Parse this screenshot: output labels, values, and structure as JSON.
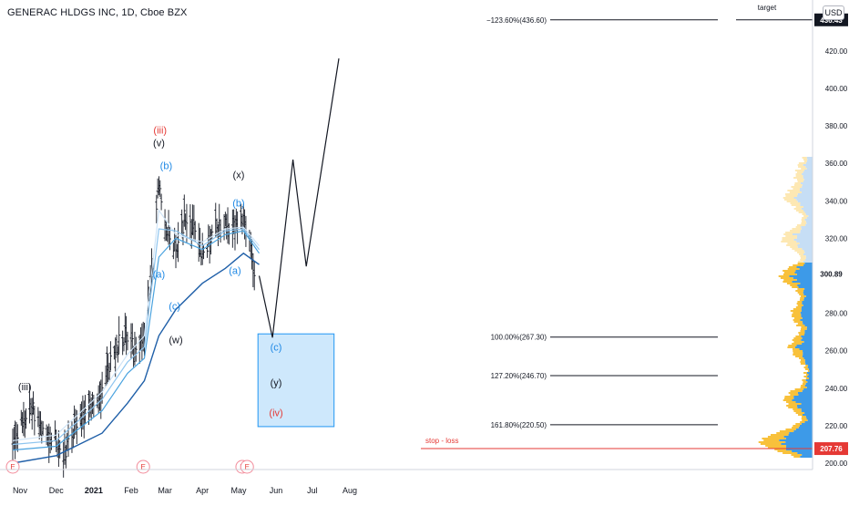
{
  "header": {
    "title": "GENERAC HLDGS INC, 1D, Cboe BZX",
    "currency": "USD"
  },
  "chart_data": {
    "type": "line",
    "title": "GENERAC HLDGS INC, 1D, Cboe BZX",
    "x_ticks": [
      "Nov",
      "Dec",
      "2021",
      "Feb",
      "Mar",
      "Apr",
      "May",
      "Jun",
      "Jul",
      "Aug"
    ],
    "y_ticks": [
      200.0,
      220.0,
      240.0,
      260.0,
      280.0,
      300.0,
      320.0,
      340.0,
      360.0,
      380.0,
      400.0,
      420.0
    ],
    "ylim": [
      195,
      440
    ],
    "price_labels": {
      "last": "300.89",
      "stop": "207.76",
      "target": "436.43"
    },
    "price_series": [
      {
        "d": "2020-10-26",
        "v": 208
      },
      {
        "d": "2020-11-05",
        "v": 225
      },
      {
        "d": "2020-11-10",
        "v": 230
      },
      {
        "d": "2020-11-20",
        "v": 218
      },
      {
        "d": "2020-12-01",
        "v": 212
      },
      {
        "d": "2020-12-08",
        "v": 205
      },
      {
        "d": "2020-12-18",
        "v": 222
      },
      {
        "d": "2020-12-30",
        "v": 228
      },
      {
        "d": "2021-01-08",
        "v": 240
      },
      {
        "d": "2021-01-20",
        "v": 262
      },
      {
        "d": "2021-01-29",
        "v": 270
      },
      {
        "d": "2021-02-04",
        "v": 258
      },
      {
        "d": "2021-02-12",
        "v": 268
      },
      {
        "d": "2021-02-18",
        "v": 300
      },
      {
        "d": "2021-02-24",
        "v": 350
      },
      {
        "d": "2021-03-01",
        "v": 330
      },
      {
        "d": "2021-03-05",
        "v": 322
      },
      {
        "d": "2021-03-10",
        "v": 315
      },
      {
        "d": "2021-03-17",
        "v": 330
      },
      {
        "d": "2021-03-25",
        "v": 325
      },
      {
        "d": "2021-04-01",
        "v": 310
      },
      {
        "d": "2021-04-09",
        "v": 325
      },
      {
        "d": "2021-04-20",
        "v": 328
      },
      {
        "d": "2021-04-28",
        "v": 325
      },
      {
        "d": "2021-05-05",
        "v": 330
      },
      {
        "d": "2021-05-10",
        "v": 320
      },
      {
        "d": "2021-05-14",
        "v": 300
      }
    ],
    "moving_averages": [
      {
        "name": "",
        "color": "#cfe4f7",
        "points": [
          {
            "d": "2020-10-26",
            "v": 212
          },
          {
            "d": "2020-12-01",
            "v": 215
          },
          {
            "d": "2021-01-08",
            "v": 238
          },
          {
            "d": "2021-01-29",
            "v": 258
          },
          {
            "d": "2021-02-12",
            "v": 268
          },
          {
            "d": "2021-02-24",
            "v": 335
          },
          {
            "d": "2021-03-10",
            "v": 322
          },
          {
            "d": "2021-04-01",
            "v": 318
          },
          {
            "d": "2021-04-20",
            "v": 325
          },
          {
            "d": "2021-05-05",
            "v": 326
          },
          {
            "d": "2021-05-18",
            "v": 316
          }
        ]
      },
      {
        "name": "",
        "color": "#8ec5ef",
        "points": [
          {
            "d": "2020-10-26",
            "v": 210
          },
          {
            "d": "2020-12-01",
            "v": 212
          },
          {
            "d": "2021-01-08",
            "v": 234
          },
          {
            "d": "2021-01-29",
            "v": 254
          },
          {
            "d": "2021-02-12",
            "v": 262
          },
          {
            "d": "2021-02-24",
            "v": 325
          },
          {
            "d": "2021-03-10",
            "v": 324
          },
          {
            "d": "2021-04-01",
            "v": 316
          },
          {
            "d": "2021-04-20",
            "v": 324
          },
          {
            "d": "2021-05-05",
            "v": 325
          },
          {
            "d": "2021-05-18",
            "v": 314
          }
        ]
      },
      {
        "name": "",
        "color": "#4aa3df",
        "points": [
          {
            "d": "2020-10-26",
            "v": 207
          },
          {
            "d": "2020-12-01",
            "v": 209
          },
          {
            "d": "2021-01-08",
            "v": 228
          },
          {
            "d": "2021-01-29",
            "v": 248
          },
          {
            "d": "2021-02-12",
            "v": 256
          },
          {
            "d": "2021-02-24",
            "v": 310
          },
          {
            "d": "2021-03-10",
            "v": 320
          },
          {
            "d": "2021-04-01",
            "v": 314
          },
          {
            "d": "2021-04-20",
            "v": 322
          },
          {
            "d": "2021-05-05",
            "v": 324
          },
          {
            "d": "2021-05-18",
            "v": 312
          }
        ]
      },
      {
        "name": "",
        "color": "#1f5fa8",
        "points": [
          {
            "d": "2020-10-26",
            "v": 200
          },
          {
            "d": "2020-12-01",
            "v": 204
          },
          {
            "d": "2021-01-08",
            "v": 216
          },
          {
            "d": "2021-01-29",
            "v": 232
          },
          {
            "d": "2021-02-12",
            "v": 244
          },
          {
            "d": "2021-02-24",
            "v": 268
          },
          {
            "d": "2021-03-10",
            "v": 282
          },
          {
            "d": "2021-04-01",
            "v": 296
          },
          {
            "d": "2021-04-20",
            "v": 304
          },
          {
            "d": "2021-05-05",
            "v": 312
          },
          {
            "d": "2021-05-18",
            "v": 306
          }
        ]
      }
    ],
    "projection": [
      {
        "d": "2021-05-18",
        "v": 300
      },
      {
        "d": "2021-05-29",
        "v": 267
      },
      {
        "d": "2021-06-15",
        "v": 362
      },
      {
        "d": "2021-06-26",
        "v": 305
      },
      {
        "d": "2021-07-23",
        "v": 416
      }
    ],
    "fib_levels": [
      {
        "label": "−123.60%(436.60)",
        "v": 436.6
      },
      {
        "label": "100.00%(267.30)",
        "v": 267.3
      },
      {
        "label": "127.20%(246.70)",
        "v": 246.7
      },
      {
        "label": "161.80%(220.50)",
        "v": 220.5
      }
    ],
    "target_label": "target",
    "stop_label": "stop - loss",
    "stop_value": 207.76,
    "zone": {
      "top": 269,
      "bottom": 219.5,
      "d_start": "2021-05-17",
      "d_end": "2021-07-19"
    },
    "annotations": [
      {
        "text": "(iii)",
        "d": "2020-11-05",
        "v": 239,
        "color": "#131722"
      },
      {
        "text": "(iii)",
        "d": "2021-02-25",
        "v": 376,
        "color": "#e53935"
      },
      {
        "text": "(v)",
        "d": "2021-02-24",
        "v": 369,
        "color": "#131722"
      },
      {
        "text": "(b)",
        "d": "2021-03-02",
        "v": 357,
        "color": "#1e88e5"
      },
      {
        "text": "(a)",
        "d": "2021-02-24",
        "v": 299,
        "color": "#1e88e5"
      },
      {
        "text": "(c)",
        "d": "2021-03-09",
        "v": 282,
        "color": "#1e88e5"
      },
      {
        "text": "(w)",
        "d": "2021-03-10",
        "v": 264,
        "color": "#131722"
      },
      {
        "text": "(x)",
        "d": "2021-05-01",
        "v": 352,
        "color": "#131722"
      },
      {
        "text": "(b)",
        "d": "2021-05-01",
        "v": 337,
        "color": "#1e88e5"
      },
      {
        "text": "(a)",
        "d": "2021-04-28",
        "v": 301,
        "color": "#1e88e5"
      },
      {
        "text": "(c)",
        "d": "2021-06-01",
        "v": 260,
        "color": "#1e88e5"
      },
      {
        "text": "(y)",
        "d": "2021-06-01",
        "v": 241,
        "color": "#131722"
      },
      {
        "text": "(iv)",
        "d": "2021-06-01",
        "v": 225,
        "color": "#e53935"
      }
    ],
    "earnings_markers": [
      {
        "text": "E",
        "d": "2020-10-26"
      },
      {
        "text": "E",
        "d": "2021-02-11"
      },
      {
        "text": "E",
        "d": "2021-05-04"
      },
      {
        "text": "E",
        "d": "2021-05-08"
      }
    ],
    "grid": false,
    "legend": "none"
  }
}
